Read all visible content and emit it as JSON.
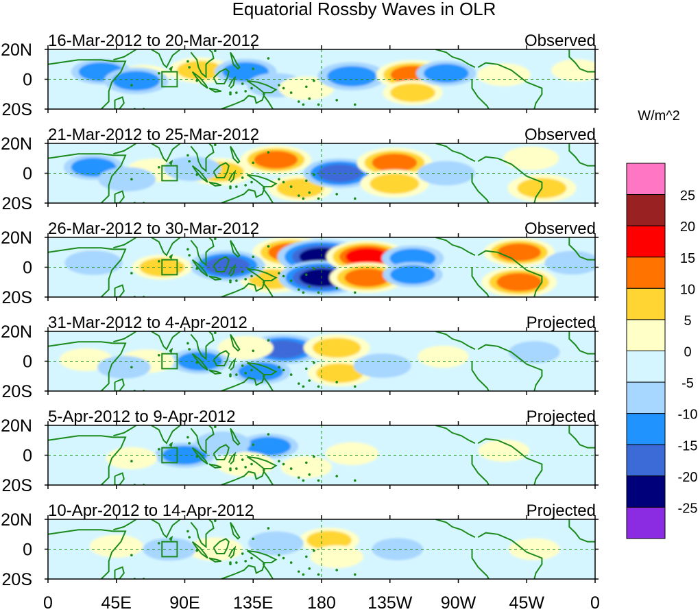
{
  "chart_data": {
    "type": "heatmap",
    "title": "Equatorial Rossby Waves in OLR",
    "variable": "OLR anomaly",
    "units": "W/m^2",
    "longitude_range": [
      0,
      360
    ],
    "latitude_range": [
      -20,
      20
    ],
    "x_ticks": [
      {
        "lon": 0,
        "label": "0"
      },
      {
        "lon": 45,
        "label": "45E"
      },
      {
        "lon": 90,
        "label": "90E"
      },
      {
        "lon": 135,
        "label": "135E"
      },
      {
        "lon": 180,
        "label": "180"
      },
      {
        "lon": 225,
        "label": "135W"
      },
      {
        "lon": 270,
        "label": "90W"
      },
      {
        "lon": 315,
        "label": "45W"
      },
      {
        "lon": 360,
        "label": "0"
      }
    ],
    "y_ticks": [
      {
        "lat": 20,
        "label": "20N"
      },
      {
        "lat": 0,
        "label": "0"
      },
      {
        "lat": -20,
        "label": "20S"
      }
    ],
    "colorbar": {
      "label": "W/m^2",
      "boundary_labels": [
        "25",
        "20",
        "15",
        "10",
        "5",
        "0",
        "-5",
        "-10",
        "-15",
        "-20",
        "-25"
      ],
      "boundary_values": [
        25,
        20,
        15,
        10,
        5,
        0,
        -5,
        -10,
        -15,
        -20,
        -25
      ],
      "colors_top_to_bottom": [
        "#ff77c4",
        "#9a2121",
        "#ff0000",
        "#ff7300",
        "#ffd533",
        "#ffffc8",
        "#d6f6ff",
        "#a7d6ff",
        "#2193ff",
        "#3c6bd8",
        "#00007a",
        "#8b2be2"
      ]
    },
    "panels": [
      {
        "date_range": "16-Mar-2012 to 20-Mar-2012",
        "kind": "Observed",
        "anomalies": [
          {
            "lon": 100,
            "lat": 6,
            "value": 7
          },
          {
            "lon": 63,
            "lat": 2,
            "value": 3
          },
          {
            "lon": 35,
            "lat": 5,
            "value": -6
          },
          {
            "lon": 58,
            "lat": -1,
            "value": -8
          },
          {
            "lon": 130,
            "lat": 5,
            "value": -7
          },
          {
            "lon": 150,
            "lat": -4,
            "value": -5
          },
          {
            "lon": 170,
            "lat": -6,
            "value": 4
          },
          {
            "lon": 200,
            "lat": 2,
            "value": -10
          },
          {
            "lon": 240,
            "lat": 3,
            "value": 12
          },
          {
            "lon": 240,
            "lat": -9,
            "value": 6
          },
          {
            "lon": 262,
            "lat": 4,
            "value": -6
          },
          {
            "lon": 300,
            "lat": 3,
            "value": 3
          },
          {
            "lon": 348,
            "lat": 6,
            "value": 2
          }
        ]
      },
      {
        "date_range": "21-Mar-2012 to 25-Mar-2012",
        "kind": "Observed",
        "anomalies": [
          {
            "lon": 150,
            "lat": 9,
            "value": 11
          },
          {
            "lon": 166,
            "lat": -10,
            "value": 8
          },
          {
            "lon": 113,
            "lat": 1,
            "value": 9
          },
          {
            "lon": 70,
            "lat": 2,
            "value": 4
          },
          {
            "lon": 30,
            "lat": 4,
            "value": -6
          },
          {
            "lon": 52,
            "lat": -4,
            "value": -5
          },
          {
            "lon": 95,
            "lat": 3,
            "value": -5
          },
          {
            "lon": 192,
            "lat": 0,
            "value": -12
          },
          {
            "lon": 228,
            "lat": 7,
            "value": 13
          },
          {
            "lon": 228,
            "lat": -7,
            "value": 10
          },
          {
            "lon": 262,
            "lat": 0,
            "value": -5
          },
          {
            "lon": 325,
            "lat": -10,
            "value": 10
          },
          {
            "lon": 318,
            "lat": 10,
            "value": 4
          }
        ]
      },
      {
        "date_range": "26-Mar-2012 to 30-Mar-2012",
        "kind": "Observed",
        "anomalies": [
          {
            "lon": 160,
            "lat": 10,
            "value": 14
          },
          {
            "lon": 148,
            "lat": -8,
            "value": 9
          },
          {
            "lon": 180,
            "lat": 7,
            "value": -19
          },
          {
            "lon": 180,
            "lat": -7,
            "value": -18
          },
          {
            "lon": 210,
            "lat": 7,
            "value": 16
          },
          {
            "lon": 210,
            "lat": -7,
            "value": 13
          },
          {
            "lon": 118,
            "lat": 1,
            "value": -13
          },
          {
            "lon": 75,
            "lat": 0,
            "value": 6
          },
          {
            "lon": 30,
            "lat": 3,
            "value": -5
          },
          {
            "lon": 240,
            "lat": 6,
            "value": -7
          },
          {
            "lon": 240,
            "lat": -5,
            "value": -6
          },
          {
            "lon": 310,
            "lat": 10,
            "value": 11
          },
          {
            "lon": 310,
            "lat": -10,
            "value": 13
          },
          {
            "lon": 345,
            "lat": 3,
            "value": -4
          }
        ]
      },
      {
        "date_range": "31-Mar-2012 to 4-Apr-2012",
        "kind": "Projected",
        "anomalies": [
          {
            "lon": 155,
            "lat": 8,
            "value": -12
          },
          {
            "lon": 140,
            "lat": -7,
            "value": -6
          },
          {
            "lon": 100,
            "lat": 0,
            "value": -6
          },
          {
            "lon": 190,
            "lat": 9,
            "value": 9
          },
          {
            "lon": 192,
            "lat": -8,
            "value": 8
          },
          {
            "lon": 130,
            "lat": 9,
            "value": 4
          },
          {
            "lon": 220,
            "lat": -3,
            "value": -5
          },
          {
            "lon": 65,
            "lat": 0,
            "value": 4
          },
          {
            "lon": 25,
            "lat": 1,
            "value": 3
          },
          {
            "lon": 50,
            "lat": -4,
            "value": -3
          },
          {
            "lon": 260,
            "lat": 3,
            "value": 2
          },
          {
            "lon": 320,
            "lat": 6,
            "value": -2
          }
        ]
      },
      {
        "date_range": "5-Apr-2012 to 9-Apr-2012",
        "kind": "Projected",
        "anomalies": [
          {
            "lon": 145,
            "lat": 6,
            "value": -6
          },
          {
            "lon": 130,
            "lat": -6,
            "value": 5
          },
          {
            "lon": 90,
            "lat": 0,
            "value": -6
          },
          {
            "lon": 115,
            "lat": 8,
            "value": -4
          },
          {
            "lon": 200,
            "lat": 1,
            "value": 3
          },
          {
            "lon": 55,
            "lat": -2,
            "value": 2
          },
          {
            "lon": 170,
            "lat": -8,
            "value": 2
          },
          {
            "lon": 300,
            "lat": 3,
            "value": 2
          }
        ]
      },
      {
        "date_range": "10-Apr-2012 to 14-Apr-2012",
        "kind": "Projected",
        "anomalies": [
          {
            "lon": 185,
            "lat": 6,
            "value": 6
          },
          {
            "lon": 190,
            "lat": -5,
            "value": 3
          },
          {
            "lon": 150,
            "lat": 4,
            "value": -4
          },
          {
            "lon": 110,
            "lat": 0,
            "value": 4
          },
          {
            "lon": 80,
            "lat": 0,
            "value": -3
          },
          {
            "lon": 45,
            "lat": 2,
            "value": 3
          },
          {
            "lon": 230,
            "lat": 0,
            "value": -2
          },
          {
            "lon": 320,
            "lat": 0,
            "value": 2
          }
        ]
      }
    ],
    "box_region": {
      "lon_range": [
        75,
        85
      ],
      "lat_range": [
        -5,
        5
      ]
    }
  }
}
